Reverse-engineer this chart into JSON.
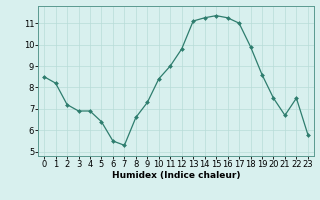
{
  "x": [
    0,
    1,
    2,
    3,
    4,
    5,
    6,
    7,
    8,
    9,
    10,
    11,
    12,
    13,
    14,
    15,
    16,
    17,
    18,
    19,
    20,
    21,
    22,
    23
  ],
  "y": [
    8.5,
    8.2,
    7.2,
    6.9,
    6.9,
    6.4,
    5.5,
    5.3,
    6.6,
    7.3,
    8.4,
    9.0,
    9.8,
    11.1,
    11.25,
    11.35,
    11.25,
    11.0,
    9.9,
    8.6,
    7.5,
    6.7,
    7.5,
    5.8
  ],
  "line_color": "#2e7d6e",
  "marker": "D",
  "marker_size": 2.0,
  "bg_color": "#d8f0ee",
  "grid_color": "#b8dcd8",
  "xlabel": "Humidex (Indice chaleur)",
  "xlim": [
    -0.5,
    23.5
  ],
  "ylim": [
    4.8,
    11.8
  ],
  "yticks": [
    5,
    6,
    7,
    8,
    9,
    10,
    11
  ],
  "xticks": [
    0,
    1,
    2,
    3,
    4,
    5,
    6,
    7,
    8,
    9,
    10,
    11,
    12,
    13,
    14,
    15,
    16,
    17,
    18,
    19,
    20,
    21,
    22,
    23
  ],
  "xlabel_fontsize": 6.5,
  "tick_fontsize": 6.0
}
